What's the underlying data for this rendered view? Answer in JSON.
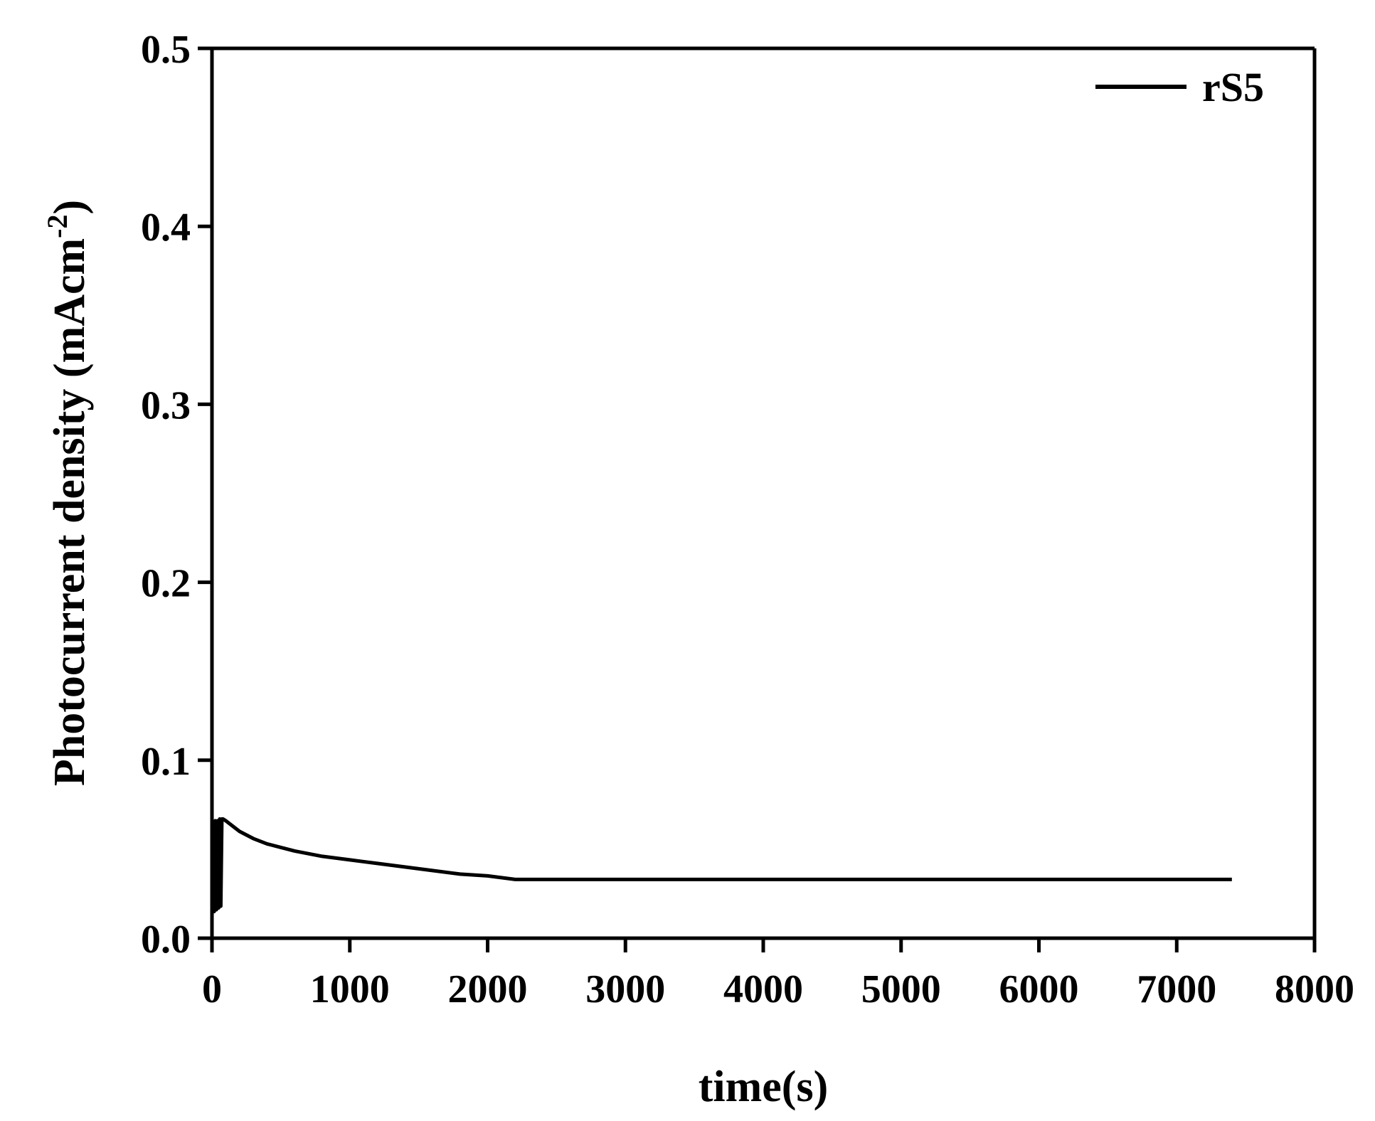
{
  "chart_data": {
    "type": "line",
    "title": "",
    "xlabel": "time(s)",
    "ylabel": "Photocurrent density (mAcm",
    "ylabel_sup": "-2",
    "ylabel_close": ")",
    "xlim": [
      0,
      8000
    ],
    "ylim": [
      0.0,
      0.5
    ],
    "x_ticks": [
      0,
      1000,
      2000,
      3000,
      4000,
      5000,
      6000,
      7000,
      8000
    ],
    "x_tick_labels": [
      "0",
      "1000",
      "2000",
      "3000",
      "4000",
      "5000",
      "6000",
      "7000",
      "8000"
    ],
    "y_ticks": [
      0.0,
      0.1,
      0.2,
      0.3,
      0.4,
      0.5
    ],
    "y_tick_labels": [
      "0.0",
      "0.1",
      "0.2",
      "0.3",
      "0.4",
      "0.5"
    ],
    "grid": false,
    "legend_position": "top-right",
    "series": [
      {
        "name": "rS5",
        "color": "#000000",
        "x": [
          0,
          8,
          16,
          24,
          32,
          40,
          48,
          56,
          64,
          72,
          80,
          100,
          150,
          200,
          300,
          400,
          500,
          600,
          800,
          1000,
          1200,
          1400,
          1600,
          1800,
          2000,
          2200,
          2300,
          2500,
          3000,
          4000,
          5000,
          6000,
          7000,
          7400
        ],
        "y": [
          0.012,
          0.065,
          0.015,
          0.066,
          0.016,
          0.066,
          0.017,
          0.067,
          0.018,
          0.067,
          0.067,
          0.066,
          0.063,
          0.06,
          0.056,
          0.053,
          0.051,
          0.049,
          0.046,
          0.044,
          0.042,
          0.04,
          0.038,
          0.036,
          0.035,
          0.033,
          0.033,
          0.033,
          0.033,
          0.033,
          0.033,
          0.033,
          0.033,
          0.033
        ]
      }
    ]
  }
}
